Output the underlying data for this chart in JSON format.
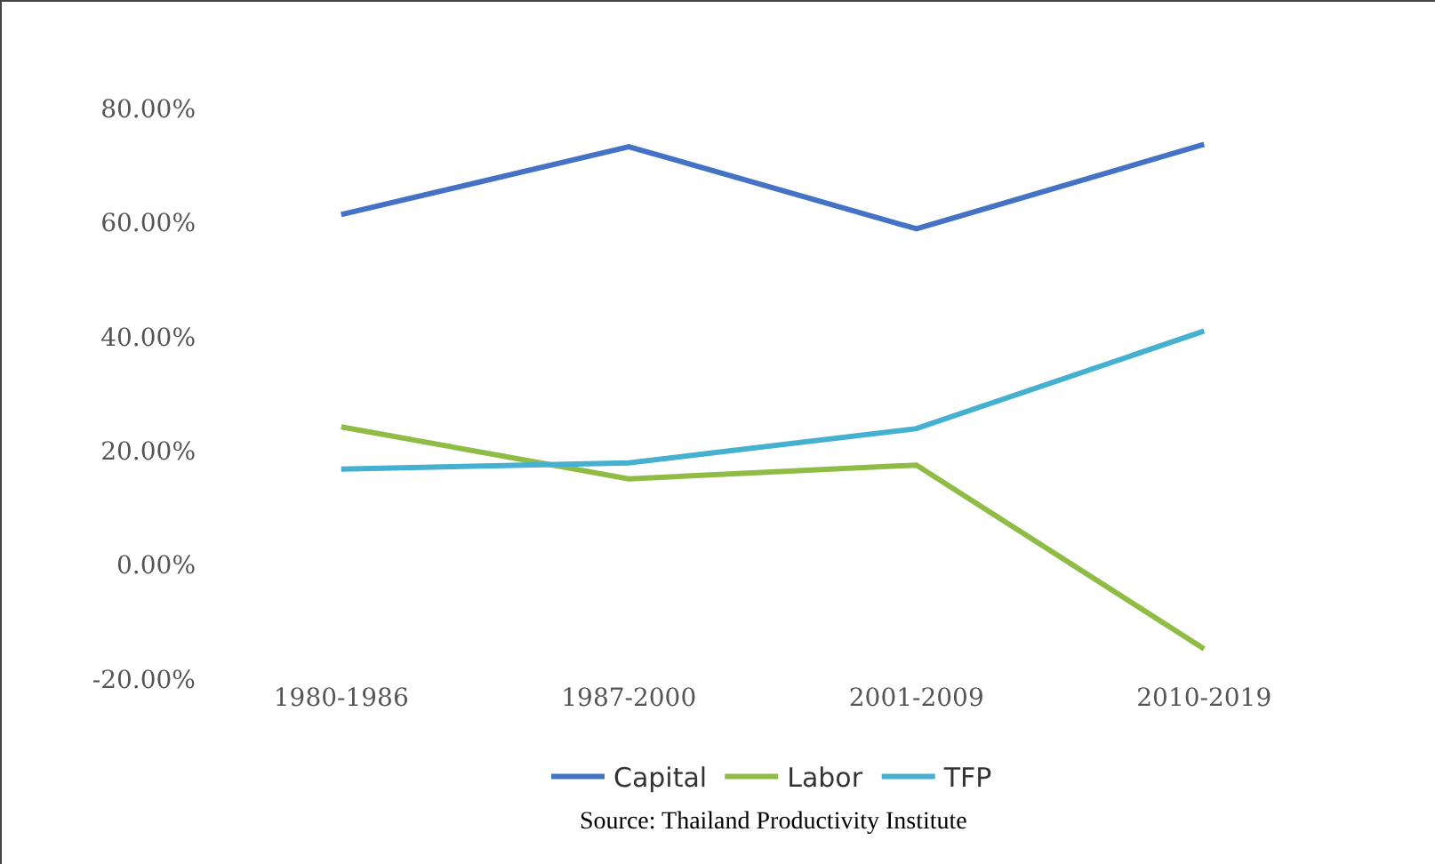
{
  "chart_data": {
    "type": "line",
    "categories": [
      "1980-1986",
      "1987-2000",
      "2001-2009",
      "2010-2019"
    ],
    "series": [
      {
        "name": "Capital",
        "color": "#4472c4",
        "values": [
          61.4,
          73.3,
          58.9,
          73.7
        ]
      },
      {
        "name": "Labor",
        "color": "#8fbc45",
        "values": [
          24.2,
          15.1,
          17.5,
          -14.7
        ]
      },
      {
        "name": "TFP",
        "color": "#45b0cf",
        "values": [
          16.8,
          17.9,
          23.9,
          41
        ]
      }
    ],
    "ylim": [
      -20,
      80
    ],
    "yticks": [
      {
        "value": -20,
        "label": "-20.00%"
      },
      {
        "value": 0,
        "label": "0.00%"
      },
      {
        "value": 20,
        "label": "20.00%"
      },
      {
        "value": 40,
        "label": "40.00%"
      },
      {
        "value": 60,
        "label": "60.00%"
      },
      {
        "value": 80,
        "label": "80.00%"
      }
    ],
    "grid": false,
    "legend": "bottom",
    "marker": "none",
    "line_style": "solid",
    "annotations": [
      "Source: Thailand Productivity Institute"
    ]
  }
}
